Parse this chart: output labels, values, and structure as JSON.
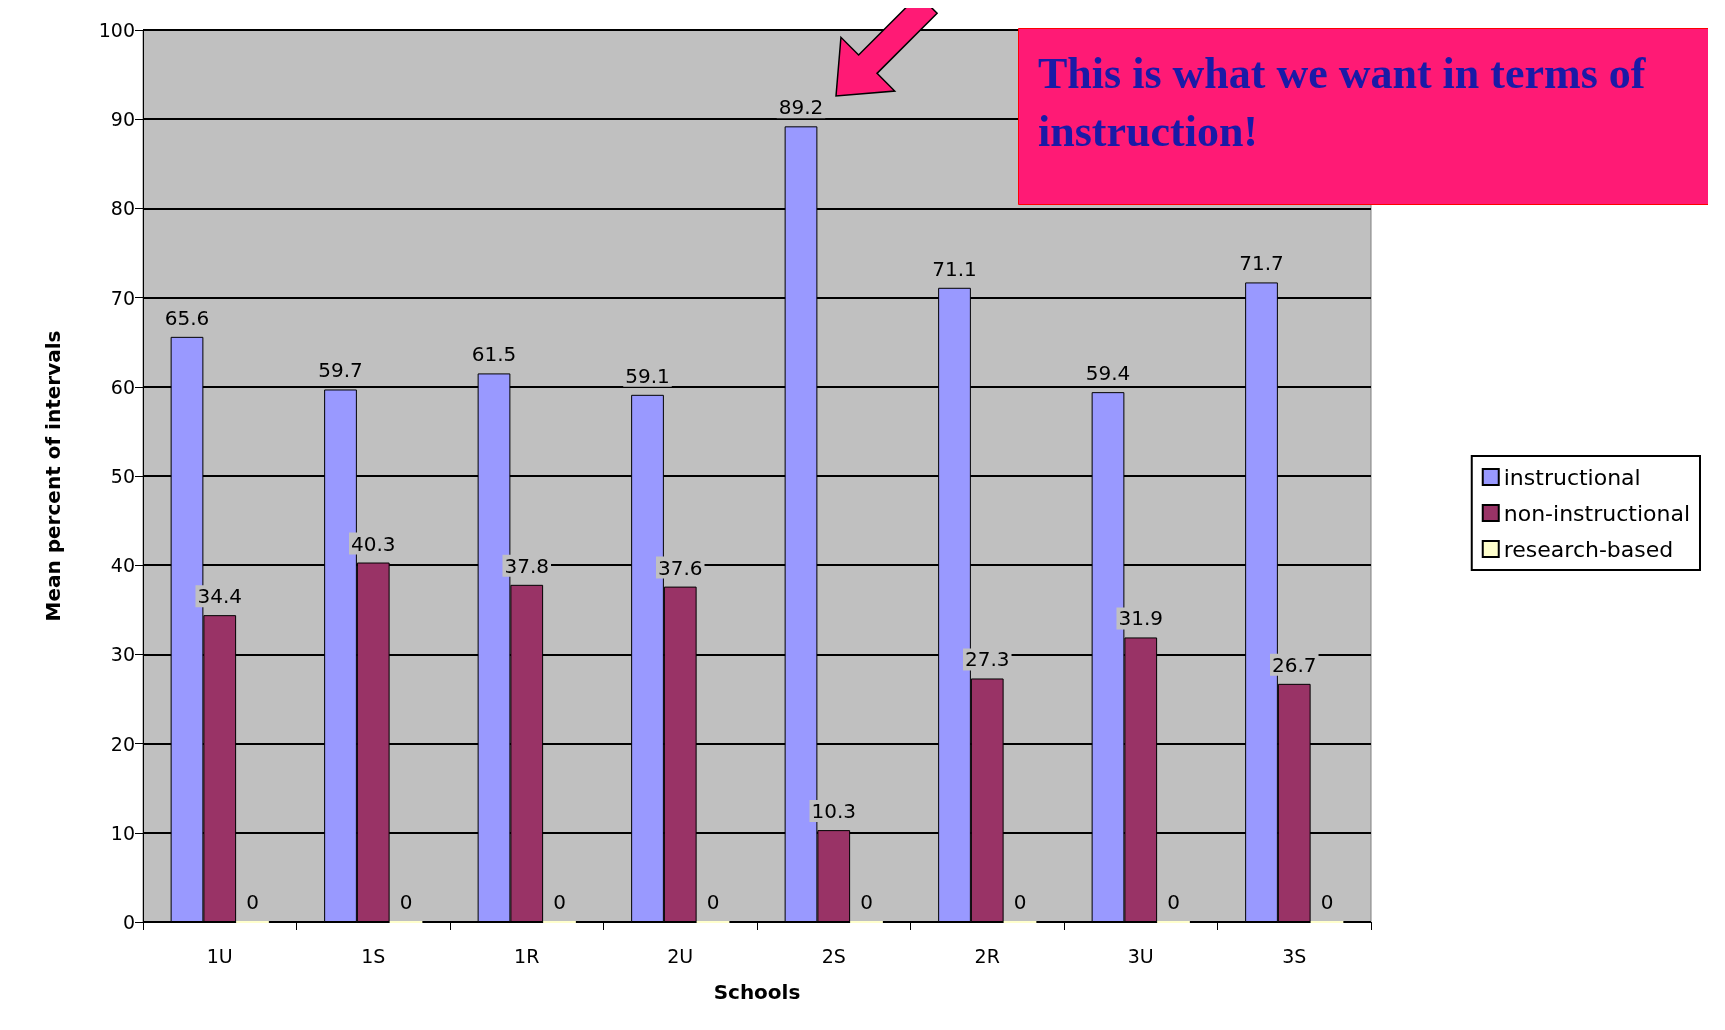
{
  "chart_data": {
    "type": "bar",
    "xlabel": "Schools",
    "ylabel": "Mean percent of intervals",
    "categories": [
      "1U",
      "1S",
      "1R",
      "2U",
      "2S",
      "2R",
      "3U",
      "3S"
    ],
    "series": [
      {
        "name": "instructional",
        "color": "#9999ff",
        "values": [
          65.6,
          59.7,
          61.5,
          59.1,
          89.2,
          71.1,
          59.4,
          71.7
        ]
      },
      {
        "name": "non-instructional",
        "color": "#993366",
        "values": [
          34.4,
          40.3,
          37.8,
          37.6,
          10.3,
          27.3,
          31.9,
          26.7
        ]
      },
      {
        "name": "research-based",
        "color": "#ffffcc",
        "values": [
          0,
          0,
          0,
          0,
          0,
          0,
          0,
          0
        ]
      }
    ],
    "ylim": [
      0,
      100
    ],
    "yticks": [
      0,
      10,
      20,
      30,
      40,
      50,
      60,
      70,
      80,
      90,
      100
    ],
    "grid": "y",
    "legend": "right",
    "data_labels": true,
    "annotations": [
      "This is what we want in terms of instruction!"
    ]
  }
}
